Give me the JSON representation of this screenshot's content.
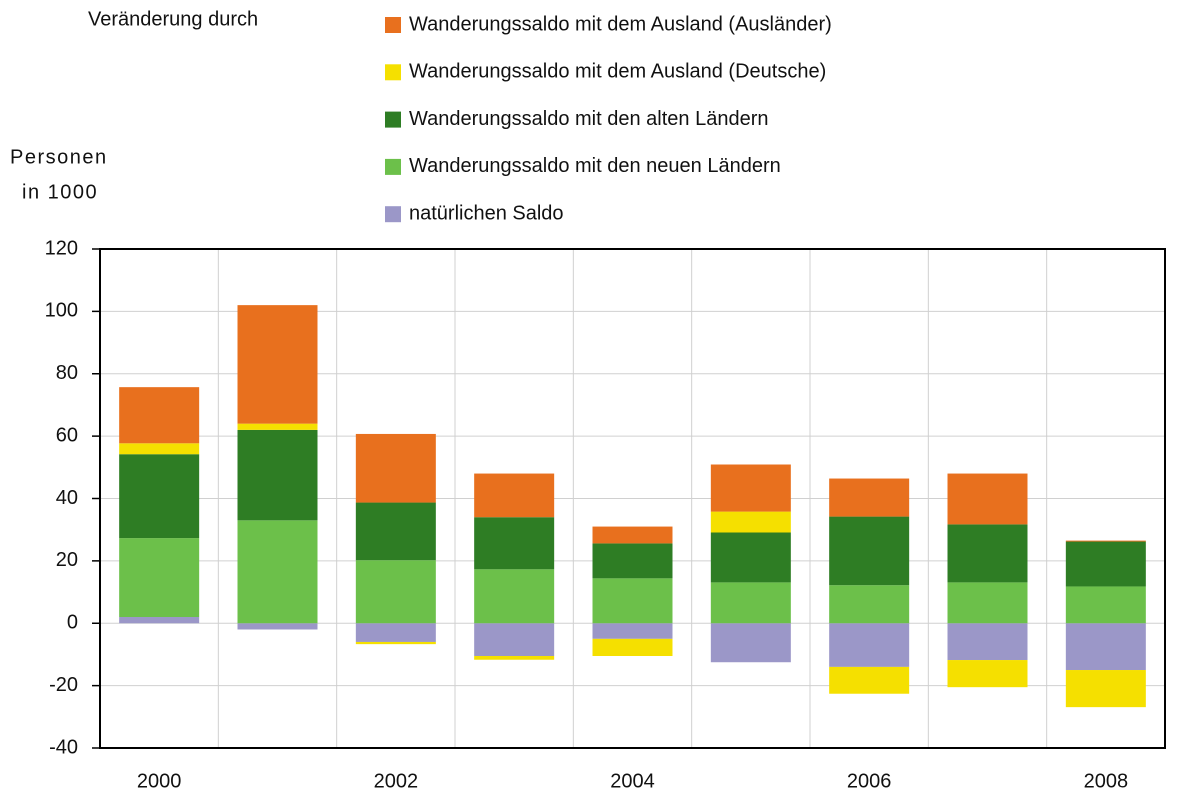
{
  "chart_data": {
    "type": "stacked-bar",
    "annotation": "Veränderung durch",
    "y_label": [
      "Personen",
      "in 1000"
    ],
    "categories": [
      "2000",
      null,
      "2002",
      null,
      "2004",
      null,
      "2006",
      null,
      "2008"
    ],
    "series": [
      {
        "name": "natürlichen Saldo",
        "color": "#9b97c8",
        "values": [
          2,
          -2,
          -6,
          -10.5,
          -5,
          -12.5,
          -14,
          -11.8,
          -15
        ]
      },
      {
        "name": "Wanderungssaldo mit den neuen Ländern",
        "color": "#6cc04a",
        "values": [
          25.3,
          33,
          20.2,
          17.3,
          14.4,
          13.1,
          12.2,
          13.1,
          11.8
        ]
      },
      {
        "name": "Wanderungssaldo mit den alten Ländern",
        "color": "#2e7d24",
        "values": [
          26.9,
          29,
          18.5,
          16.7,
          11.2,
          16,
          22,
          18.6,
          14.4
        ]
      },
      {
        "name": "Wanderungssaldo mit dem Ausland (Deutsche)",
        "color": "#f5e000",
        "values": [
          3.5,
          2,
          -0.7,
          -1.2,
          -5.5,
          6.7,
          -8.6,
          -8.7,
          -11.9
        ]
      },
      {
        "name": "Wanderungssaldo mit dem Ausland (Ausländer)",
        "color": "#e8701e",
        "values": [
          18,
          38,
          22,
          14,
          5.4,
          15.1,
          12.2,
          16.3,
          0.3
        ]
      }
    ],
    "ylim": [
      -40,
      120
    ],
    "yticks": [
      -40,
      -20,
      0,
      20,
      40,
      60,
      80,
      100,
      120
    ],
    "grid": true
  }
}
